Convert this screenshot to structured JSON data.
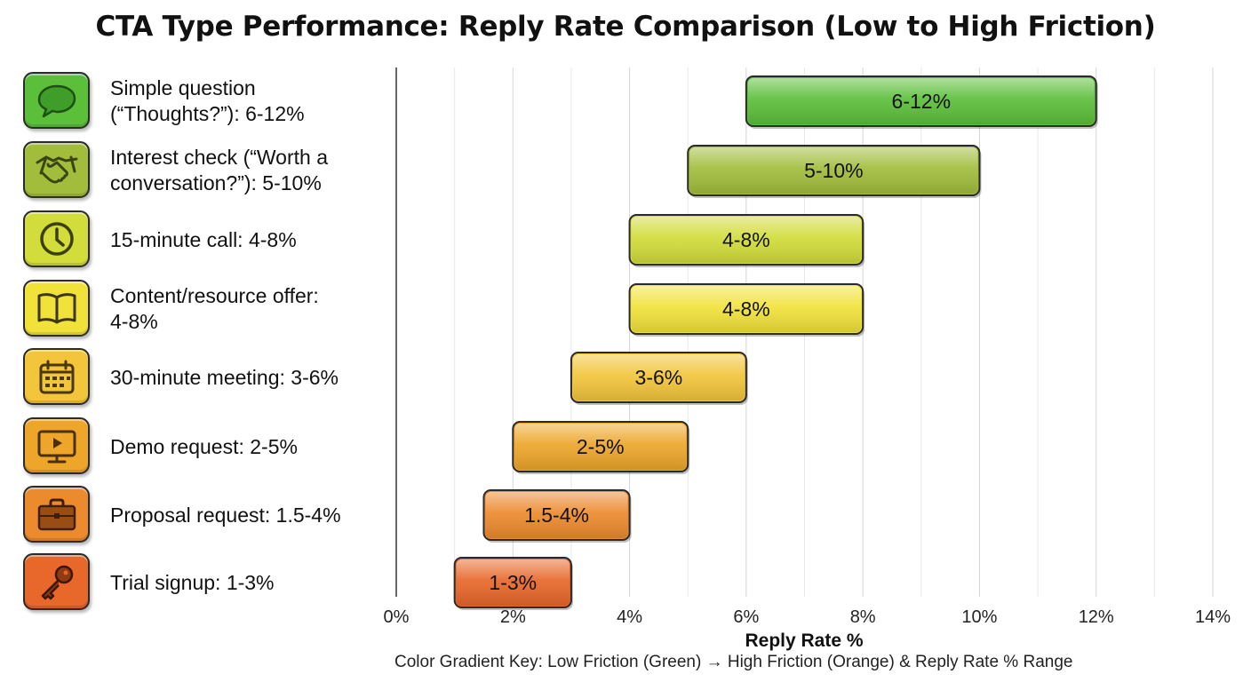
{
  "title": "CTA Type Performance: Reply Rate Comparison (Low to High Friction)",
  "cta_items": [
    {
      "label": "Simple question\n(“Thoughts?”): 6-12%",
      "icon": "speech-bubble-icon",
      "color": "#5cbf3a"
    },
    {
      "label": "Interest check (“Worth a\nconversation?”): 5-10%",
      "icon": "handshake-icon",
      "color": "#a2bd3c"
    },
    {
      "label": "15-minute call: 4-8%",
      "icon": "clock-icon",
      "color": "#d2dc3a"
    },
    {
      "label": "Content/resource offer:\n4-8%",
      "icon": "book-icon",
      "color": "#f1e23a"
    },
    {
      "label": "30-minute meeting: 3-6%",
      "icon": "calendar-icon",
      "color": "#f2c53a"
    },
    {
      "label": "Demo request: 2-5%",
      "icon": "presentation-screen-icon",
      "color": "#eda62a"
    },
    {
      "label": "Proposal request: 1.5-4%",
      "icon": "briefcase-icon",
      "color": "#ec8a2e"
    },
    {
      "label": "Trial signup: 1-3%",
      "icon": "key-icon",
      "color": "#e8672a"
    }
  ],
  "chart_data": {
    "type": "bar",
    "orientation": "horizontal-range",
    "title": "CTA Type Performance: Reply Rate Comparison (Low to High Friction)",
    "xlabel": "Reply Rate %",
    "ylabel": "",
    "xlim": [
      0,
      14
    ],
    "x_ticks": [
      0,
      2,
      4,
      6,
      8,
      10,
      12,
      14
    ],
    "x_tick_labels": [
      "0%",
      "2%",
      "4%",
      "6%",
      "8%",
      "10%",
      "12%",
      "14%"
    ],
    "grid": "vertical",
    "categories": [
      "Simple question (“Thoughts?”)",
      "Interest check (“Worth a conversation?”)",
      "15-minute call",
      "Content/resource offer",
      "30-minute meeting",
      "Demo request",
      "Proposal request",
      "Trial signup"
    ],
    "ranges": [
      {
        "low": 6,
        "high": 12,
        "label": "6-12%",
        "color": "#5cbf3a"
      },
      {
        "low": 5,
        "high": 10,
        "label": "5-10%",
        "color": "#a2bd3c"
      },
      {
        "low": 4,
        "high": 8,
        "label": "4-8%",
        "color": "#d2dc3a"
      },
      {
        "low": 4,
        "high": 8,
        "label": "4-8%",
        "color": "#f1e23a"
      },
      {
        "low": 3,
        "high": 6,
        "label": "3-6%",
        "color": "#f2c53a"
      },
      {
        "low": 2,
        "high": 5,
        "label": "2-5%",
        "color": "#eda62a"
      },
      {
        "low": 1.5,
        "high": 4,
        "label": "1.5-4%",
        "color": "#ec8a2e"
      },
      {
        "low": 1,
        "high": 3,
        "label": "1-3%",
        "color": "#e8672a"
      }
    ],
    "key_note": "Color Gradient Key: Low Friction (Green) → High Friction (Orange) & Reply Rate % Range"
  }
}
